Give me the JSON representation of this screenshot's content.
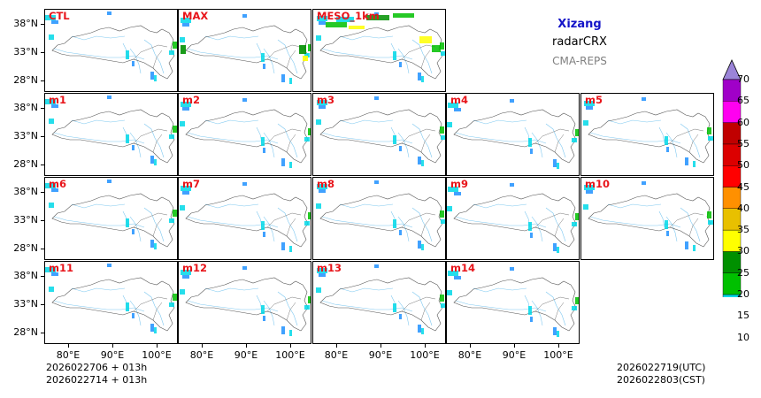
{
  "map": {
    "region_title": "Xizang",
    "variable": "radarCRX",
    "model": "CMA-REPS",
    "panels": [
      [
        "CTL",
        "MAX",
        "MESO_1km"
      ],
      [
        "m1",
        "m2",
        "m3",
        "m4",
        "m5"
      ],
      [
        "m6",
        "m7",
        "m8",
        "m9",
        "m10"
      ],
      [
        "m11",
        "m12",
        "m13",
        "m14"
      ]
    ],
    "lat_labels": [
      "38°N",
      "33°N",
      "28°N"
    ],
    "lon_labels": [
      "80°E",
      "90°E",
      "100°E"
    ],
    "init_time_utc": "2026022706  +  013h",
    "init_time_cst": "2026022714  +  013h",
    "valid_time_utc": "2026022719(UTC)",
    "valid_time_cst": "2026022803(CST)",
    "colorbar": {
      "levels": [
        "10",
        "15",
        "20",
        "25",
        "30",
        "35",
        "40",
        "45",
        "50",
        "55",
        "60",
        "65",
        "70"
      ],
      "colors": [
        "#1e90ff",
        "#00d8e8",
        "#00c000",
        "#009000",
        "#ffff00",
        "#e8c000",
        "#ff9000",
        "#ff0000",
        "#dc0000",
        "#c00000",
        "#ff00f0",
        "#a000c8",
        "#9b84d8"
      ]
    }
  }
}
